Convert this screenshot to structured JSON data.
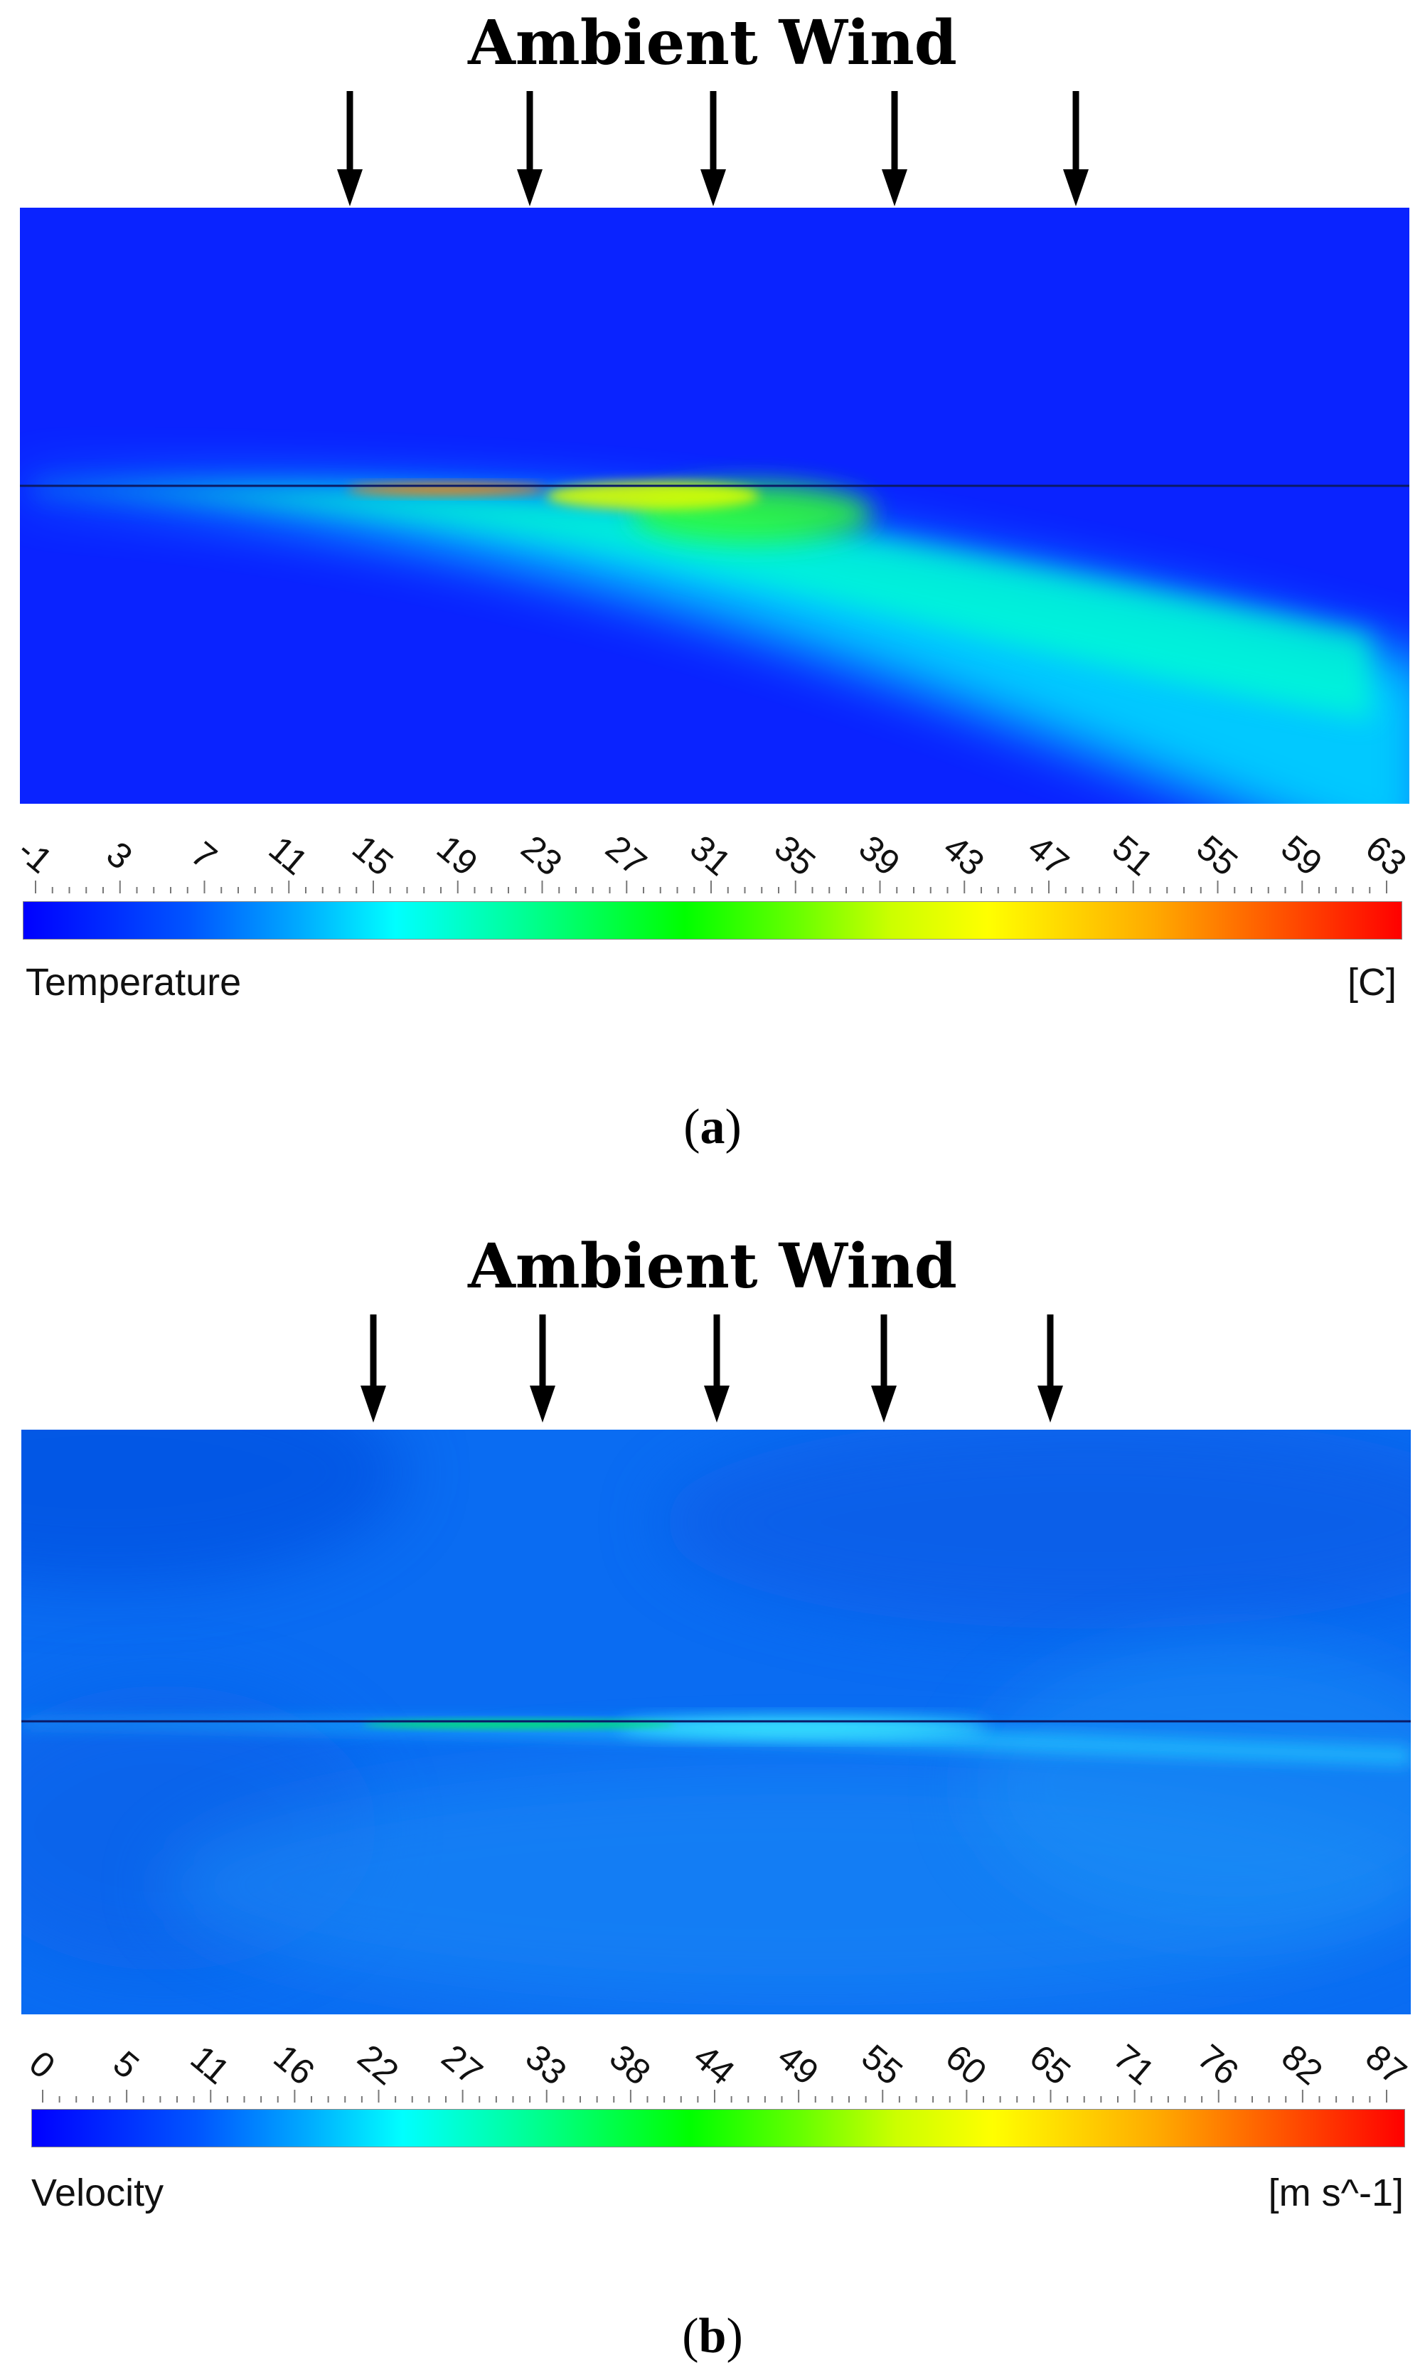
{
  "panels": [
    {
      "id": "a",
      "title": "Ambient Wind",
      "colorbar": {
        "label": "Temperature",
        "unit": "[C]",
        "ticks": [
          "-1",
          "3",
          "7",
          "11",
          "15",
          "19",
          "23",
          "27",
          "31",
          "35",
          "39",
          "43",
          "47",
          "51",
          "55",
          "59",
          "63"
        ]
      },
      "caption_letter": "a"
    },
    {
      "id": "b",
      "title": "Ambient Wind",
      "colorbar": {
        "label": "Velocity",
        "unit": "[m s^-1]",
        "ticks": [
          "0",
          "5",
          "11",
          "16",
          "22",
          "27",
          "33",
          "38",
          "44",
          "49",
          "55",
          "60",
          "65",
          "71",
          "76",
          "82",
          "87"
        ]
      },
      "caption_letter": "b"
    }
  ],
  "colors": {
    "field_background_a": "#0a23ff",
    "field_background_b": "#0a6cf2",
    "arrow": "#000000"
  }
}
